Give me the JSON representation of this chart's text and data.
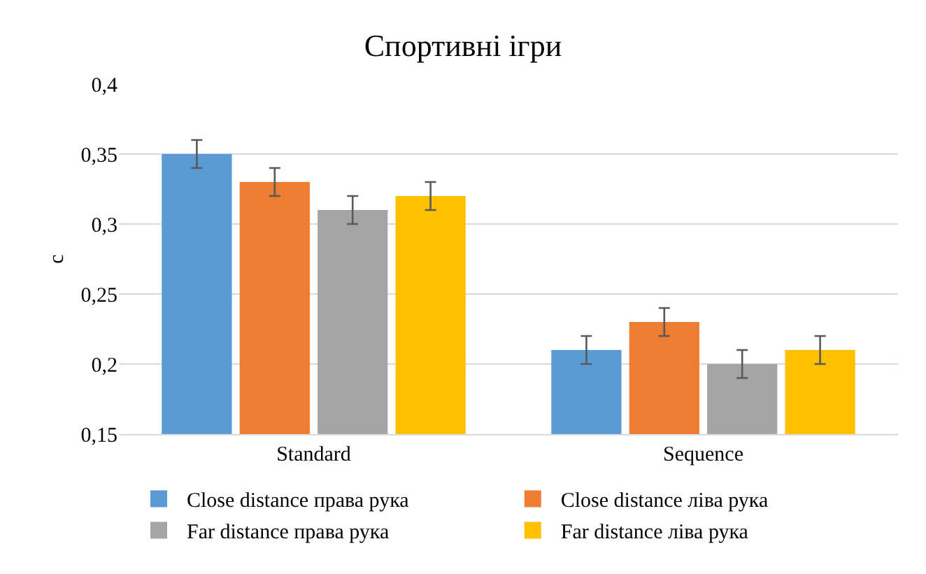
{
  "chart_data": {
    "type": "bar",
    "title": "Спортивні ігри",
    "ylabel": "c",
    "categories": [
      "Standard",
      "Sequence"
    ],
    "series": [
      {
        "name": "Close distance права рука",
        "color": "#5b9bd5",
        "values": [
          0.35,
          0.21
        ],
        "errors": [
          0.01,
          0.01
        ]
      },
      {
        "name": "Close distance ліва рука",
        "color": "#ed7d31",
        "values": [
          0.33,
          0.23
        ],
        "errors": [
          0.01,
          0.01
        ]
      },
      {
        "name": "Far distance права рука",
        "color": "#a5a5a5",
        "values": [
          0.31,
          0.2
        ],
        "errors": [
          0.01,
          0.01
        ]
      },
      {
        "name": "Far distance ліва рука",
        "color": "#ffc000",
        "values": [
          0.32,
          0.21
        ],
        "errors": [
          0.01,
          0.01
        ]
      }
    ],
    "ylim": [
      0.15,
      0.4
    ],
    "yticks": [
      {
        "value": 0.15,
        "label": "0,15"
      },
      {
        "value": 0.2,
        "label": "0,2"
      },
      {
        "value": 0.25,
        "label": "0,25"
      },
      {
        "value": 0.3,
        "label": "0,3"
      },
      {
        "value": 0.35,
        "label": "0,35"
      },
      {
        "value": 0.4,
        "label": "0,4"
      }
    ],
    "grid": "y",
    "legend": "bottom"
  }
}
